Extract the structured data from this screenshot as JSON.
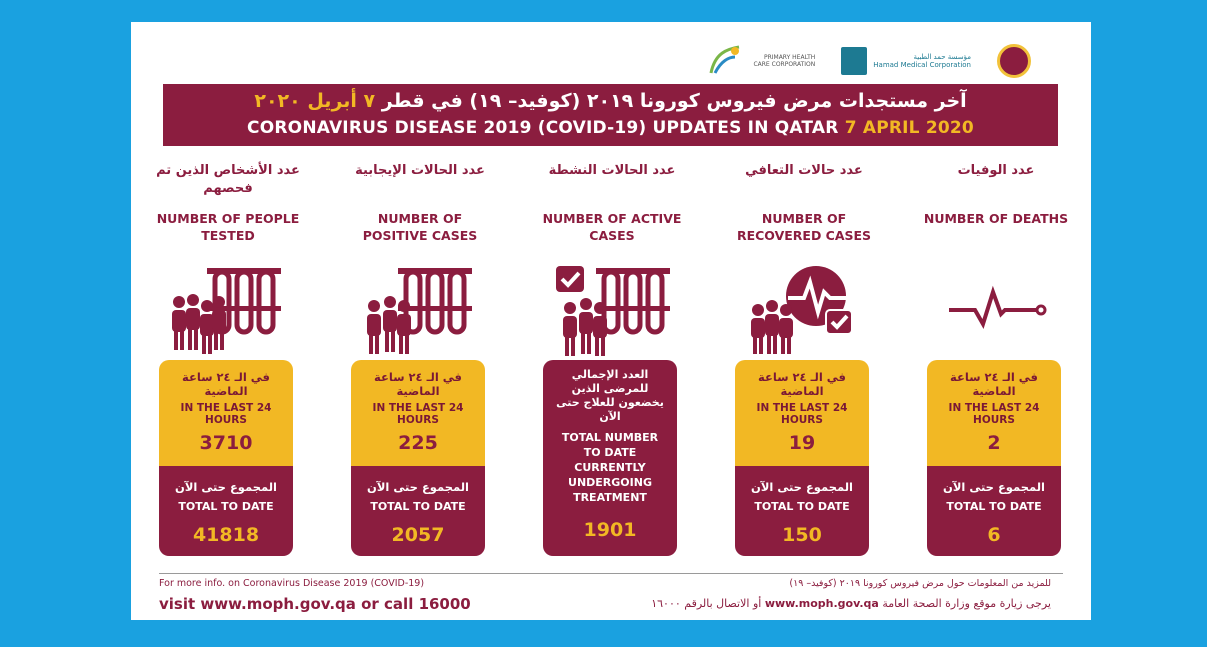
{
  "logos": {
    "phcc": "PRIMARY HEALTH CARE CORPORATION",
    "hmc_ar": "مؤسسة حمد الطبية",
    "hmc_en": "Hamad Medical Corporation"
  },
  "banner": {
    "title_ar": "آخر مستجدات مرض فيروس كورونا ٢٠١٩ (كوفيد– ١٩) في قطر",
    "date_ar": "٧ أبريل ٢٠٢٠",
    "title_en": "CORONAVIRUS DISEASE 2019 (COVID-19) UPDATES IN QATAR",
    "date_en": "7 APRIL 2020"
  },
  "columns": [
    {
      "label_ar": "عدد الأشخاص الذين تم فحصهم",
      "label_en": "NUMBER OF PEOPLE TESTED",
      "last24_ar": "في الـ ٢٤ ساعة الماضية",
      "last24_en": "IN THE LAST 24 HOURS",
      "last24_value": "3710",
      "total_ar": "المجموع حتى الآن",
      "total_en": "TOTAL TO DATE",
      "total_value": "41818",
      "icon": "people-test-tubes-icon"
    },
    {
      "label_ar": "عدد الحالات الإيجابية",
      "label_en": "NUMBER OF POSITIVE CASES",
      "last24_ar": "في الـ ٢٤ ساعة الماضية",
      "last24_en": "IN THE LAST 24 HOURS",
      "last24_value": "225",
      "total_ar": "المجموع حتى الآن",
      "total_en": "TOTAL TO DATE",
      "total_value": "2057",
      "icon": "people-test-tubes-icon"
    },
    {
      "label_ar": "عدد الحالات النشطة",
      "label_en": "NUMBER OF ACTIVE CASES",
      "full_ar": "العدد الإجمالي للمرضى الذين يخضعون للعلاج حتى الآن",
      "full_en": "TOTAL NUMBER TO DATE CURRENTLY UNDERGOING TREATMENT",
      "full_value": "1901",
      "icon": "checkmark-people-tubes-icon"
    },
    {
      "label_ar": "عدد حالات التعافي",
      "label_en": "NUMBER OF RECOVERED CASES",
      "last24_ar": "في الـ ٢٤ ساعة الماضية",
      "last24_en": "IN THE LAST 24 HOURS",
      "last24_value": "19",
      "total_ar": "المجموع حتى الآن",
      "total_en": "TOTAL TO DATE",
      "total_value": "150",
      "icon": "heartbeat-check-icon"
    },
    {
      "label_ar": "عدد الوفيات",
      "label_en": "NUMBER OF DEATHS",
      "last24_ar": "في الـ ٢٤ ساعة الماضية",
      "last24_en": "IN THE LAST 24 HOURS",
      "last24_value": "2",
      "total_ar": "المجموع حتى الآن",
      "total_en": "TOTAL TO DATE",
      "total_value": "6",
      "icon": "flatline-icon"
    }
  ],
  "footer": {
    "info_en": "For more info. on Coronavirus Disease 2019 (COVID-19)",
    "visit_en": "visit www.moph.gov.qa or call 16000",
    "info_ar": "للمزيد من المعلومات حول مرض فيروس كورونا ٢٠١٩ (كوفيد– ١٩)",
    "visit_ar_pre": "يرجى زيارة موقع وزارة الصحة العامة",
    "visit_ar_url": "www.moph.gov.qa",
    "visit_ar_post": "أو الاتصال بالرقم ١٦٠٠٠"
  },
  "colors": {
    "maroon": "#8b1d3f",
    "gold": "#f2b824",
    "background": "#1aa1e0"
  }
}
